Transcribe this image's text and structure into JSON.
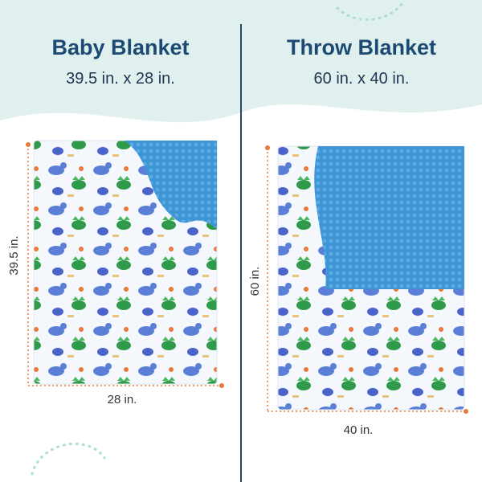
{
  "left": {
    "title": "Baby Blanket",
    "size": "39.5 in. x 28 in.",
    "height_label": "39.5 in.",
    "width_label": "28 in."
  },
  "right": {
    "title": "Throw Blanket",
    "size": "60 in. x 40 in.",
    "height_label": "60 in.",
    "width_label": "40 in."
  }
}
